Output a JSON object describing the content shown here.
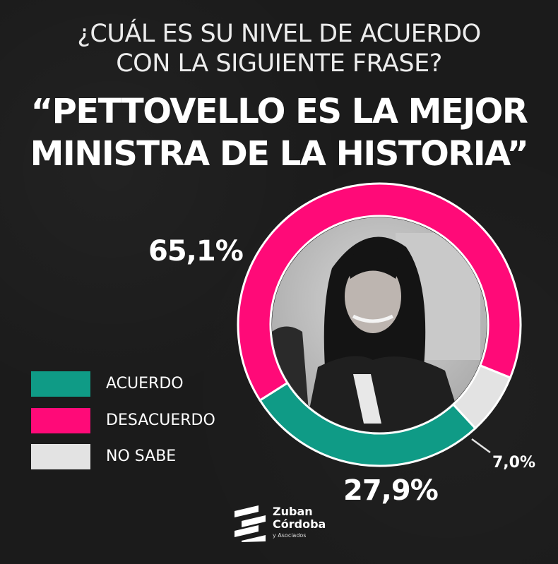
{
  "question": {
    "line1": "¿CUÁL ES SU NIVEL DE ACUERDO",
    "line2": "CON LA SIGUIENTE FRASE?"
  },
  "headline": {
    "line1": "“PETTOVELLO ES LA MEJOR",
    "line2": "MINISTRA DE LA HISTORIA”"
  },
  "chart_data": {
    "type": "pie",
    "variant": "donut",
    "title": "¿CUÁL ES SU NIVEL DE ACUERDO CON LA SIGUIENTE FRASE? “PETTOVELLO ES LA MEJOR MINISTRA DE LA HISTORIA”",
    "categories": [
      "ACUERDO",
      "DESACUERDO",
      "NO SABE"
    ],
    "values": [
      27.9,
      65.1,
      7.0
    ],
    "labels": [
      "27,9%",
      "65,1%",
      "7,0%"
    ],
    "colors": [
      "#0f9b86",
      "#ff0a78",
      "#e3e3e3"
    ],
    "legend_position": "left"
  },
  "brand": {
    "name_line1": "Zuban",
    "name_line2": "Córdoba",
    "sub": "y Asociados"
  }
}
